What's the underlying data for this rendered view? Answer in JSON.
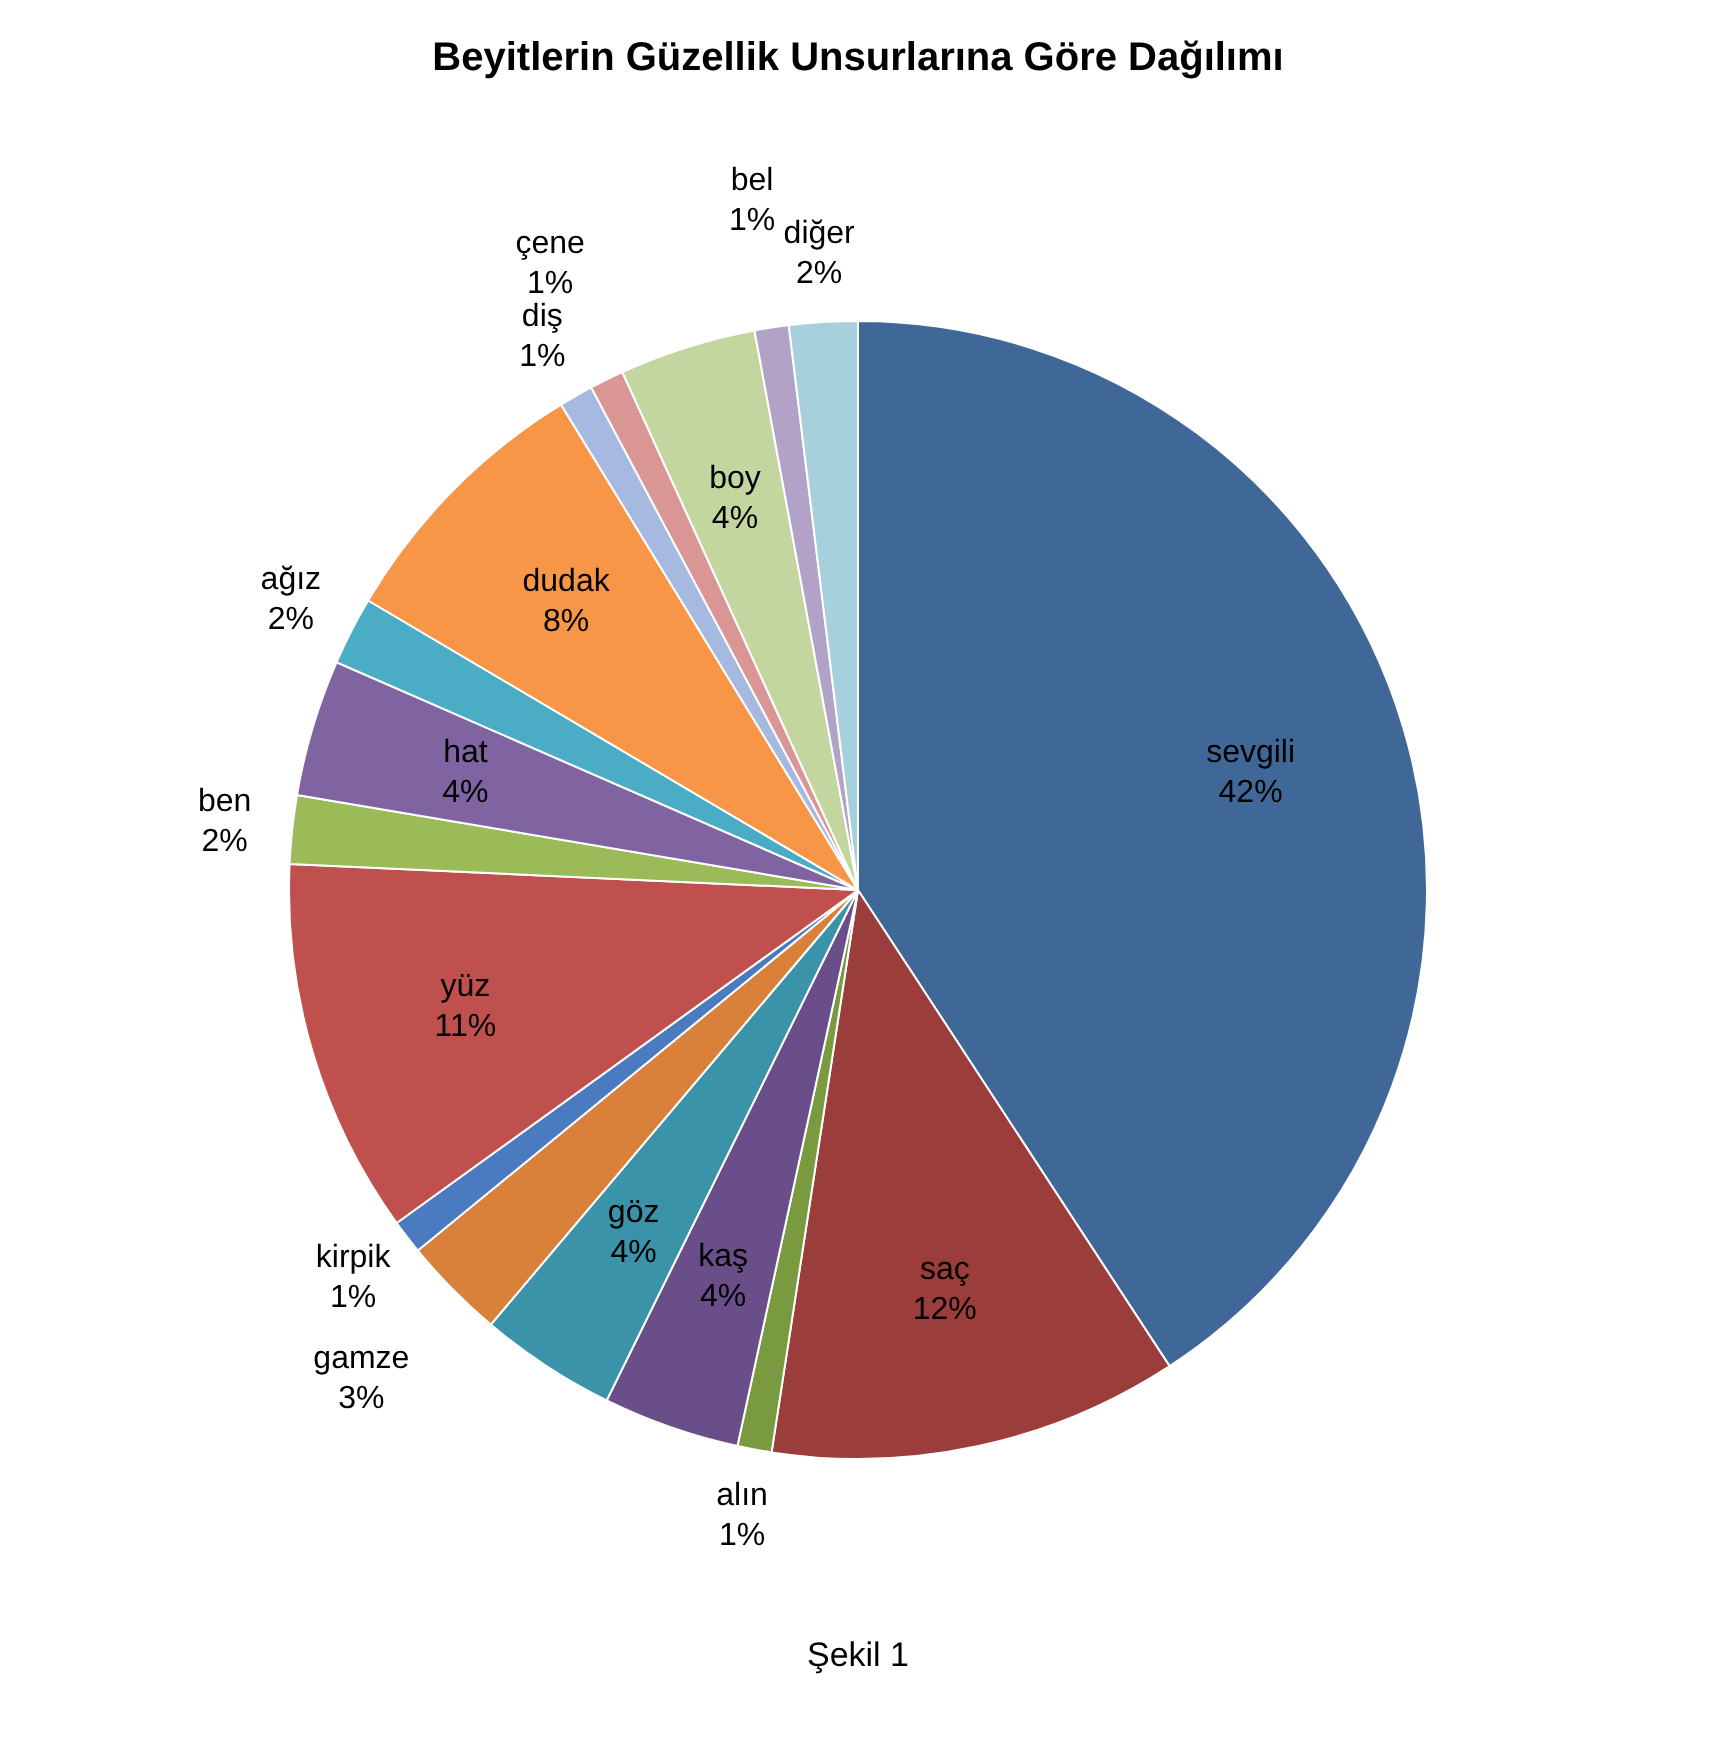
{
  "chart_data": {
    "type": "pie",
    "title": "Beyitlerin Güzellik Unsurlarına Göre Dağılımı",
    "categories": [
      "sevgili",
      "saç",
      "alın",
      "kaş",
      "göz",
      "gamze",
      "kirpik",
      "yüz",
      "ben",
      "hat",
      "ağız",
      "dudak",
      "diş",
      "çene",
      "boy",
      "bel",
      "diğer"
    ],
    "values": [
      42,
      12,
      1,
      4,
      4,
      3,
      1,
      11,
      2,
      4,
      2,
      8,
      1,
      1,
      4,
      1,
      2
    ],
    "value_labels": [
      "42%",
      "12%",
      "1%",
      "4%",
      "4%",
      "3%",
      "1%",
      "11%",
      "2%",
      "4%",
      "2%",
      "8%",
      "1%",
      "1%",
      "4%",
      "1%",
      "2%"
    ],
    "colors": [
      "#3f6797",
      "#9a3d3b",
      "#7a9a3f",
      "#6a4e8a",
      "#3a93a8",
      "#d9803a",
      "#4a7ac0",
      "#c0504d",
      "#9bbb59",
      "#8064a2",
      "#4bacc6",
      "#f79646",
      "#a6b9e0",
      "#d99694",
      "#c4d6a0",
      "#b3a2c7",
      "#a5d0dc"
    ],
    "legend": false,
    "annotations": [
      "Şekil 1"
    ]
  }
}
